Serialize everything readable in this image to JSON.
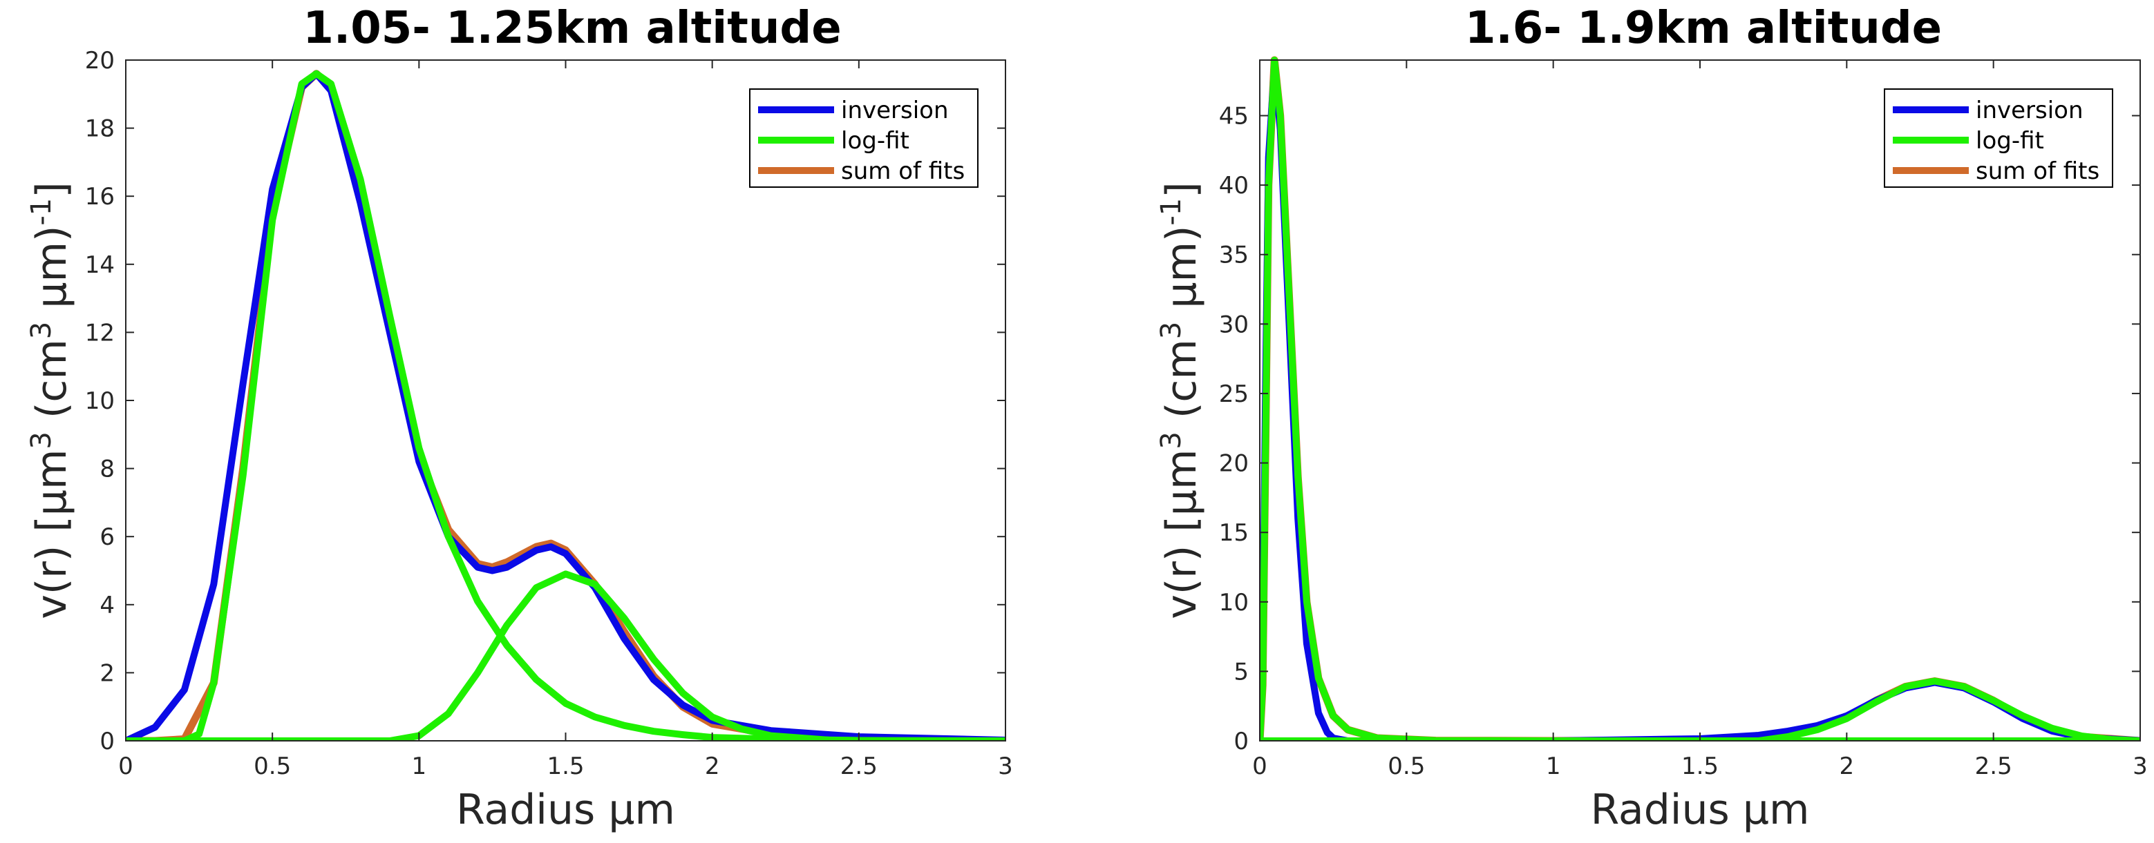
{
  "chart_data": [
    {
      "type": "line",
      "title": "1.05- 1.25km altitude",
      "xlabel": "Radius  µm",
      "ylabel_parts": [
        "v(r) [µm",
        "3",
        " (cm",
        "3",
        " µm)",
        "-1",
        "]"
      ],
      "xlim": [
        0,
        3
      ],
      "ylim": [
        0,
        20
      ],
      "xticks": [
        0,
        0.5,
        1,
        1.5,
        2,
        2.5,
        3
      ],
      "xtick_labels": [
        "0",
        "0.5",
        "1",
        "1.5",
        "2",
        "2.5",
        "3"
      ],
      "yticks": [
        0,
        2,
        4,
        6,
        8,
        10,
        12,
        14,
        16,
        18,
        20
      ],
      "ytick_labels": [
        "0",
        "2",
        "4",
        "6",
        "8",
        "10",
        "12",
        "14",
        "16",
        "18",
        "20"
      ],
      "legend": [
        "inversion",
        "log-fit",
        "sum of fits"
      ],
      "series": [
        {
          "name": "sum of fits",
          "color": "#d06a2a",
          "x": [
            0,
            0.1,
            0.2,
            0.3,
            0.4,
            0.5,
            0.6,
            0.65,
            0.7,
            0.8,
            0.9,
            1.0,
            1.1,
            1.2,
            1.25,
            1.3,
            1.4,
            1.45,
            1.5,
            1.6,
            1.7,
            1.8,
            1.9,
            2.0,
            2.2,
            2.5,
            3.0
          ],
          "y": [
            0,
            0,
            0.05,
            1.7,
            8.0,
            15.5,
            19.2,
            19.6,
            19.2,
            16.2,
            12.2,
            8.4,
            6.2,
            5.2,
            5.1,
            5.25,
            5.7,
            5.8,
            5.6,
            4.6,
            3.2,
            1.9,
            1.0,
            0.5,
            0.2,
            0.05,
            0
          ]
        },
        {
          "name": "inversion",
          "color": "#0a0ae6",
          "x": [
            0,
            0.1,
            0.2,
            0.3,
            0.4,
            0.5,
            0.6,
            0.65,
            0.7,
            0.8,
            0.9,
            1.0,
            1.1,
            1.2,
            1.25,
            1.3,
            1.4,
            1.45,
            1.5,
            1.6,
            1.7,
            1.8,
            1.9,
            2.0,
            2.2,
            2.5,
            3.0
          ],
          "y": [
            0,
            0.4,
            1.5,
            4.6,
            10.5,
            16.2,
            19.2,
            19.6,
            19.1,
            15.8,
            12.0,
            8.2,
            6.0,
            5.1,
            5.0,
            5.1,
            5.6,
            5.7,
            5.5,
            4.5,
            3.0,
            1.8,
            1.05,
            0.6,
            0.3,
            0.12,
            0.02
          ]
        },
        {
          "name": "log-fit",
          "color": "#1ef000",
          "x": [
            0,
            0.2,
            0.25,
            0.3,
            0.4,
            0.5,
            0.6,
            0.65,
            0.7,
            0.8,
            0.9,
            1.0,
            1.1,
            1.2,
            1.3,
            1.4,
            1.5,
            1.6,
            1.7,
            1.8,
            1.9,
            2.0,
            2.2,
            2.5,
            3.0
          ],
          "y": [
            0,
            0,
            0.2,
            1.7,
            7.8,
            15.3,
            19.3,
            19.6,
            19.3,
            16.5,
            12.5,
            8.6,
            6.0,
            4.1,
            2.8,
            1.8,
            1.1,
            0.7,
            0.45,
            0.28,
            0.18,
            0.1,
            0.05,
            0.01,
            0
          ]
        },
        {
          "name": "log-fit",
          "color": "#1ef000",
          "x": [
            0,
            0.9,
            1.0,
            1.1,
            1.2,
            1.3,
            1.4,
            1.5,
            1.6,
            1.7,
            1.8,
            1.9,
            2.0,
            2.1,
            2.2,
            2.4,
            2.6,
            3.0
          ],
          "y": [
            0,
            0,
            0.15,
            0.8,
            2.0,
            3.4,
            4.5,
            4.9,
            4.6,
            3.6,
            2.4,
            1.4,
            0.7,
            0.35,
            0.15,
            0.02,
            0,
            0
          ]
        }
      ]
    },
    {
      "type": "line",
      "title": "1.6- 1.9km altitude",
      "xlabel": "Radius  µm",
      "ylabel_parts": [
        "v(r) [µm",
        "3",
        " (cm",
        "3",
        " µm)",
        "-1",
        "]"
      ],
      "xlim": [
        0,
        3
      ],
      "ylim": [
        0,
        49
      ],
      "xticks": [
        0,
        0.5,
        1,
        1.5,
        2,
        2.5,
        3
      ],
      "xtick_labels": [
        "0",
        "0.5",
        "1",
        "1.5",
        "2",
        "2.5",
        "3"
      ],
      "yticks": [
        0,
        5,
        10,
        15,
        20,
        25,
        30,
        35,
        40,
        45
      ],
      "ytick_labels": [
        "0",
        "5",
        "10",
        "15",
        "20",
        "25",
        "30",
        "35",
        "40",
        "45"
      ],
      "legend": [
        "inversion",
        "log-fit",
        "sum of fits"
      ],
      "series": [
        {
          "name": "sum of fits",
          "color": "#d06a2a",
          "x": [
            0,
            0.01,
            0.02,
            0.03,
            0.05,
            0.07,
            0.1,
            0.13,
            0.16,
            0.2,
            0.25,
            0.3,
            0.4,
            0.6,
            1.0,
            1.5,
            1.8,
            1.9,
            2.0,
            2.1,
            2.2,
            2.3,
            2.4,
            2.5,
            2.6,
            2.7,
            2.8,
            3.0
          ],
          "y": [
            0,
            4,
            22,
            40,
            49,
            45,
            32,
            19,
            10,
            4.5,
            1.8,
            0.8,
            0.2,
            0.02,
            0,
            0.05,
            0.45,
            0.9,
            1.7,
            2.9,
            3.9,
            4.3,
            3.9,
            2.9,
            1.7,
            0.8,
            0.3,
            0
          ]
        },
        {
          "name": "inversion",
          "color": "#0a0ae6",
          "x": [
            0,
            0.01,
            0.02,
            0.03,
            0.05,
            0.07,
            0.1,
            0.13,
            0.16,
            0.2,
            0.23,
            0.25,
            0.3,
            0.5,
            1.0,
            1.5,
            1.7,
            1.8,
            1.9,
            2.0,
            2.1,
            2.2,
            2.3,
            2.4,
            2.5,
            2.6,
            2.7,
            2.8,
            3.0
          ],
          "y": [
            0,
            6,
            26,
            42,
            48.5,
            44,
            30,
            16,
            7,
            2,
            0.6,
            0.2,
            0,
            0,
            0,
            0.15,
            0.4,
            0.7,
            1.1,
            1.8,
            2.9,
            3.8,
            4.2,
            3.8,
            2.8,
            1.6,
            0.7,
            0.25,
            0.02
          ]
        },
        {
          "name": "log-fit",
          "color": "#1ef000",
          "x": [
            0,
            0.01,
            0.02,
            0.03,
            0.05,
            0.07,
            0.1,
            0.13,
            0.16,
            0.2,
            0.25,
            0.3,
            0.4,
            0.6,
            1.0,
            3.0
          ],
          "y": [
            0,
            4,
            22,
            40,
            49,
            45,
            32,
            19,
            10,
            4.5,
            1.8,
            0.8,
            0.2,
            0.02,
            0,
            0
          ]
        },
        {
          "name": "log-fit",
          "color": "#1ef000",
          "x": [
            0,
            1.7,
            1.8,
            1.9,
            2.0,
            2.1,
            2.2,
            2.3,
            2.4,
            2.5,
            2.6,
            2.7,
            2.8,
            2.9,
            3.0
          ],
          "y": [
            0,
            0,
            0.3,
            0.8,
            1.6,
            2.8,
            3.9,
            4.3,
            3.9,
            2.9,
            1.8,
            0.9,
            0.35,
            0.1,
            0
          ]
        }
      ]
    }
  ]
}
